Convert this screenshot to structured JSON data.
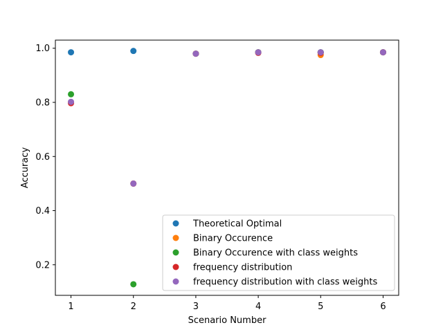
{
  "chart_data": {
    "type": "scatter",
    "title": "",
    "xlabel": "Scenario Number",
    "ylabel": "Accuracy",
    "xlim": [
      0.75,
      6.25
    ],
    "ylim": [
      0.087,
      1.03
    ],
    "xticks": [
      1,
      2,
      3,
      4,
      5,
      6
    ],
    "yticks": [
      0.2,
      0.4,
      0.6,
      0.8,
      1.0
    ],
    "ytick_labels": [
      "0.2",
      "0.4",
      "0.6",
      "0.8",
      "1.0"
    ],
    "grid": false,
    "legend_position": "lower right",
    "series": [
      {
        "name": "Theoretical Optimal",
        "color": "#1f77b4",
        "x": [
          1,
          2,
          3,
          4,
          5,
          6
        ],
        "y": [
          0.985,
          0.99,
          0.98,
          0.985,
          0.985,
          0.985
        ]
      },
      {
        "name": "Binary Occurence",
        "color": "#ff7f0e",
        "x": [
          1,
          2,
          3,
          4,
          5,
          6
        ],
        "y": [
          0.8,
          0.5,
          0.98,
          0.985,
          0.975,
          0.985
        ]
      },
      {
        "name": "Binary Occurence with class weights",
        "color": "#2ca02c",
        "x": [
          1,
          2,
          3,
          4,
          5,
          6
        ],
        "y": [
          0.83,
          0.128,
          0.98,
          0.985,
          0.985,
          0.985
        ]
      },
      {
        "name": "frequency distribution",
        "color": "#d62728",
        "x": [
          1,
          2,
          3,
          4,
          5,
          6
        ],
        "y": [
          0.797,
          0.5,
          0.98,
          0.983,
          0.983,
          0.985
        ]
      },
      {
        "name": "frequency distribution with class weights",
        "color": "#9467bd",
        "x": [
          1,
          2,
          3,
          4,
          5,
          6
        ],
        "y": [
          0.802,
          0.5,
          0.98,
          0.985,
          0.985,
          0.985
        ]
      }
    ]
  }
}
